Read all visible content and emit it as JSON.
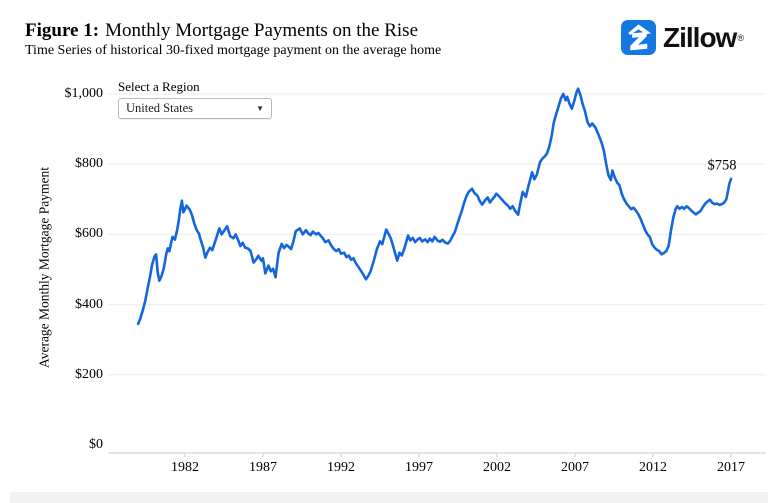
{
  "header": {
    "figure_label": "Figure 1:",
    "title": "Monthly Mortgage Payments on the Rise",
    "subtitle": "Time Series of historical 30-fixed mortgage payment on the average home"
  },
  "brand": {
    "name": "Zillow",
    "registered_mark": "®",
    "logo_color": "#1478e0"
  },
  "region_selector": {
    "label": "Select a Region",
    "selected": "United States"
  },
  "chart_data": {
    "type": "line",
    "title": "Monthly Mortgage Payments on the Rise",
    "xlabel": "",
    "ylabel": "Average Monthly Mortgage Payment",
    "x_ticks": [
      1982,
      1987,
      1992,
      1997,
      2002,
      2007,
      2012,
      2017
    ],
    "y_ticks": [
      {
        "value": 0,
        "label": "$0"
      },
      {
        "value": 200,
        "label": "$200"
      },
      {
        "value": 400,
        "label": "$400"
      },
      {
        "value": 600,
        "label": "$600"
      },
      {
        "value": 800,
        "label": "$800"
      },
      {
        "value": 1000,
        "label": "$1,000"
      }
    ],
    "ylim": [
      0,
      1050
    ],
    "xlim": [
      1977,
      2019.3
    ],
    "grid": true,
    "legend": "none",
    "line_color": "#1565dd",
    "end_label": "$758",
    "latest_value": 758,
    "series": [
      {
        "name": "United States",
        "points": [
          [
            1979.0,
            345
          ],
          [
            1979.15,
            362
          ],
          [
            1979.3,
            385
          ],
          [
            1979.45,
            410
          ],
          [
            1979.6,
            446
          ],
          [
            1979.75,
            478
          ],
          [
            1979.9,
            515
          ],
          [
            1980.05,
            538
          ],
          [
            1980.15,
            543
          ],
          [
            1980.25,
            492
          ],
          [
            1980.35,
            468
          ],
          [
            1980.5,
            482
          ],
          [
            1980.65,
            505
          ],
          [
            1980.8,
            545
          ],
          [
            1980.9,
            560
          ],
          [
            1981.0,
            552
          ],
          [
            1981.1,
            575
          ],
          [
            1981.2,
            593
          ],
          [
            1981.35,
            585
          ],
          [
            1981.5,
            613
          ],
          [
            1981.6,
            640
          ],
          [
            1981.7,
            672
          ],
          [
            1981.8,
            696
          ],
          [
            1981.9,
            663
          ],
          [
            1982.0,
            672
          ],
          [
            1982.1,
            682
          ],
          [
            1982.2,
            676
          ],
          [
            1982.3,
            671
          ],
          [
            1982.45,
            655
          ],
          [
            1982.6,
            630
          ],
          [
            1982.75,
            612
          ],
          [
            1982.9,
            602
          ],
          [
            1983.0,
            585
          ],
          [
            1983.15,
            565
          ],
          [
            1983.3,
            534
          ],
          [
            1983.45,
            550
          ],
          [
            1983.6,
            562
          ],
          [
            1983.75,
            555
          ],
          [
            1983.9,
            575
          ],
          [
            1984.05,
            596
          ],
          [
            1984.2,
            617
          ],
          [
            1984.35,
            600
          ],
          [
            1984.5,
            610
          ],
          [
            1984.7,
            623
          ],
          [
            1984.9,
            595
          ],
          [
            1985.1,
            589
          ],
          [
            1985.25,
            600
          ],
          [
            1985.4,
            585
          ],
          [
            1985.55,
            567
          ],
          [
            1985.7,
            576
          ],
          [
            1985.85,
            562
          ],
          [
            1986.0,
            561
          ],
          [
            1986.2,
            553
          ],
          [
            1986.4,
            520
          ],
          [
            1986.55,
            528
          ],
          [
            1986.7,
            539
          ],
          [
            1986.9,
            525
          ],
          [
            1987.0,
            532
          ],
          [
            1987.15,
            489
          ],
          [
            1987.35,
            511
          ],
          [
            1987.5,
            495
          ],
          [
            1987.65,
            502
          ],
          [
            1987.8,
            478
          ],
          [
            1988.0,
            548
          ],
          [
            1988.2,
            573
          ],
          [
            1988.35,
            561
          ],
          [
            1988.5,
            570
          ],
          [
            1988.65,
            565
          ],
          [
            1988.8,
            558
          ],
          [
            1988.95,
            580
          ],
          [
            1989.1,
            609
          ],
          [
            1989.35,
            617
          ],
          [
            1989.55,
            600
          ],
          [
            1989.75,
            612
          ],
          [
            1989.9,
            603
          ],
          [
            1990.05,
            598
          ],
          [
            1990.2,
            608
          ],
          [
            1990.4,
            600
          ],
          [
            1990.55,
            604
          ],
          [
            1990.7,
            596
          ],
          [
            1990.85,
            588
          ],
          [
            1991.0,
            578
          ],
          [
            1991.2,
            583
          ],
          [
            1991.35,
            570
          ],
          [
            1991.5,
            560
          ],
          [
            1991.7,
            552
          ],
          [
            1991.85,
            558
          ],
          [
            1992.0,
            545
          ],
          [
            1992.2,
            548
          ],
          [
            1992.35,
            535
          ],
          [
            1992.5,
            540
          ],
          [
            1992.65,
            528
          ],
          [
            1992.8,
            532
          ],
          [
            1992.95,
            518
          ],
          [
            1993.1,
            508
          ],
          [
            1993.25,
            498
          ],
          [
            1993.4,
            488
          ],
          [
            1993.6,
            472
          ],
          [
            1993.75,
            482
          ],
          [
            1993.9,
            495
          ],
          [
            1994.1,
            525
          ],
          [
            1994.3,
            558
          ],
          [
            1994.5,
            580
          ],
          [
            1994.65,
            572
          ],
          [
            1994.9,
            614
          ],
          [
            1995.05,
            601
          ],
          [
            1995.2,
            588
          ],
          [
            1995.35,
            565
          ],
          [
            1995.6,
            525
          ],
          [
            1995.75,
            548
          ],
          [
            1995.9,
            540
          ],
          [
            1996.05,
            558
          ],
          [
            1996.3,
            597
          ],
          [
            1996.45,
            583
          ],
          [
            1996.6,
            590
          ],
          [
            1996.75,
            578
          ],
          [
            1996.9,
            585
          ],
          [
            1997.05,
            590
          ],
          [
            1997.2,
            580
          ],
          [
            1997.4,
            586
          ],
          [
            1997.55,
            578
          ],
          [
            1997.7,
            588
          ],
          [
            1997.85,
            580
          ],
          [
            1998.0,
            593
          ],
          [
            1998.2,
            582
          ],
          [
            1998.35,
            579
          ],
          [
            1998.5,
            585
          ],
          [
            1998.7,
            576
          ],
          [
            1998.85,
            574
          ],
          [
            1999.0,
            582
          ],
          [
            1999.15,
            595
          ],
          [
            1999.3,
            607
          ],
          [
            1999.45,
            628
          ],
          [
            1999.6,
            649
          ],
          [
            1999.75,
            668
          ],
          [
            1999.9,
            691
          ],
          [
            2000.05,
            710
          ],
          [
            2000.2,
            722
          ],
          [
            2000.4,
            730
          ],
          [
            2000.55,
            718
          ],
          [
            2000.75,
            710
          ],
          [
            2000.9,
            695
          ],
          [
            2001.05,
            685
          ],
          [
            2001.2,
            695
          ],
          [
            2001.4,
            705
          ],
          [
            2001.55,
            691
          ],
          [
            2001.7,
            700
          ],
          [
            2001.85,
            708
          ],
          [
            2001.95,
            716
          ],
          [
            2002.1,
            710
          ],
          [
            2002.3,
            700
          ],
          [
            2002.5,
            690
          ],
          [
            2002.7,
            682
          ],
          [
            2002.85,
            673
          ],
          [
            2003.0,
            680
          ],
          [
            2003.15,
            668
          ],
          [
            2003.35,
            656
          ],
          [
            2003.5,
            690
          ],
          [
            2003.65,
            721
          ],
          [
            2003.85,
            707
          ],
          [
            2004.0,
            735
          ],
          [
            2004.25,
            777
          ],
          [
            2004.4,
            757
          ],
          [
            2004.55,
            770
          ],
          [
            2004.75,
            805
          ],
          [
            2004.9,
            815
          ],
          [
            2005.05,
            822
          ],
          [
            2005.2,
            830
          ],
          [
            2005.35,
            850
          ],
          [
            2005.5,
            880
          ],
          [
            2005.65,
            920
          ],
          [
            2005.8,
            944
          ],
          [
            2005.95,
            965
          ],
          [
            2006.1,
            988
          ],
          [
            2006.25,
            1000
          ],
          [
            2006.4,
            982
          ],
          [
            2006.5,
            992
          ],
          [
            2006.65,
            972
          ],
          [
            2006.8,
            958
          ],
          [
            2006.95,
            980
          ],
          [
            2007.1,
            1005
          ],
          [
            2007.2,
            1015
          ],
          [
            2007.35,
            996
          ],
          [
            2007.5,
            970
          ],
          [
            2007.65,
            950
          ],
          [
            2007.8,
            920
          ],
          [
            2007.95,
            908
          ],
          [
            2008.1,
            916
          ],
          [
            2008.3,
            905
          ],
          [
            2008.5,
            885
          ],
          [
            2008.7,
            862
          ],
          [
            2008.85,
            838
          ],
          [
            2009.0,
            800
          ],
          [
            2009.15,
            768
          ],
          [
            2009.3,
            755
          ],
          [
            2009.4,
            782
          ],
          [
            2009.55,
            762
          ],
          [
            2009.7,
            748
          ],
          [
            2009.85,
            740
          ],
          [
            2010.0,
            715
          ],
          [
            2010.15,
            700
          ],
          [
            2010.3,
            688
          ],
          [
            2010.45,
            680
          ],
          [
            2010.6,
            672
          ],
          [
            2010.75,
            676
          ],
          [
            2010.9,
            668
          ],
          [
            2011.05,
            658
          ],
          [
            2011.2,
            645
          ],
          [
            2011.35,
            628
          ],
          [
            2011.5,
            612
          ],
          [
            2011.65,
            600
          ],
          [
            2011.8,
            592
          ],
          [
            2011.95,
            572
          ],
          [
            2012.1,
            562
          ],
          [
            2012.25,
            556
          ],
          [
            2012.4,
            552
          ],
          [
            2012.55,
            543
          ],
          [
            2012.7,
            547
          ],
          [
            2012.85,
            553
          ],
          [
            2013.0,
            567
          ],
          [
            2013.15,
            610
          ],
          [
            2013.3,
            648
          ],
          [
            2013.45,
            672
          ],
          [
            2013.55,
            680
          ],
          [
            2013.7,
            673
          ],
          [
            2013.85,
            678
          ],
          [
            2014.0,
            673
          ],
          [
            2014.15,
            680
          ],
          [
            2014.3,
            675
          ],
          [
            2014.45,
            668
          ],
          [
            2014.6,
            662
          ],
          [
            2014.75,
            657
          ],
          [
            2014.9,
            662
          ],
          [
            2015.05,
            667
          ],
          [
            2015.2,
            678
          ],
          [
            2015.35,
            688
          ],
          [
            2015.5,
            694
          ],
          [
            2015.65,
            699
          ],
          [
            2015.8,
            690
          ],
          [
            2015.95,
            686
          ],
          [
            2016.1,
            688
          ],
          [
            2016.25,
            684
          ],
          [
            2016.4,
            686
          ],
          [
            2016.55,
            690
          ],
          [
            2016.7,
            700
          ],
          [
            2016.8,
            722
          ],
          [
            2016.9,
            745
          ],
          [
            2017.0,
            758
          ]
        ]
      }
    ]
  }
}
